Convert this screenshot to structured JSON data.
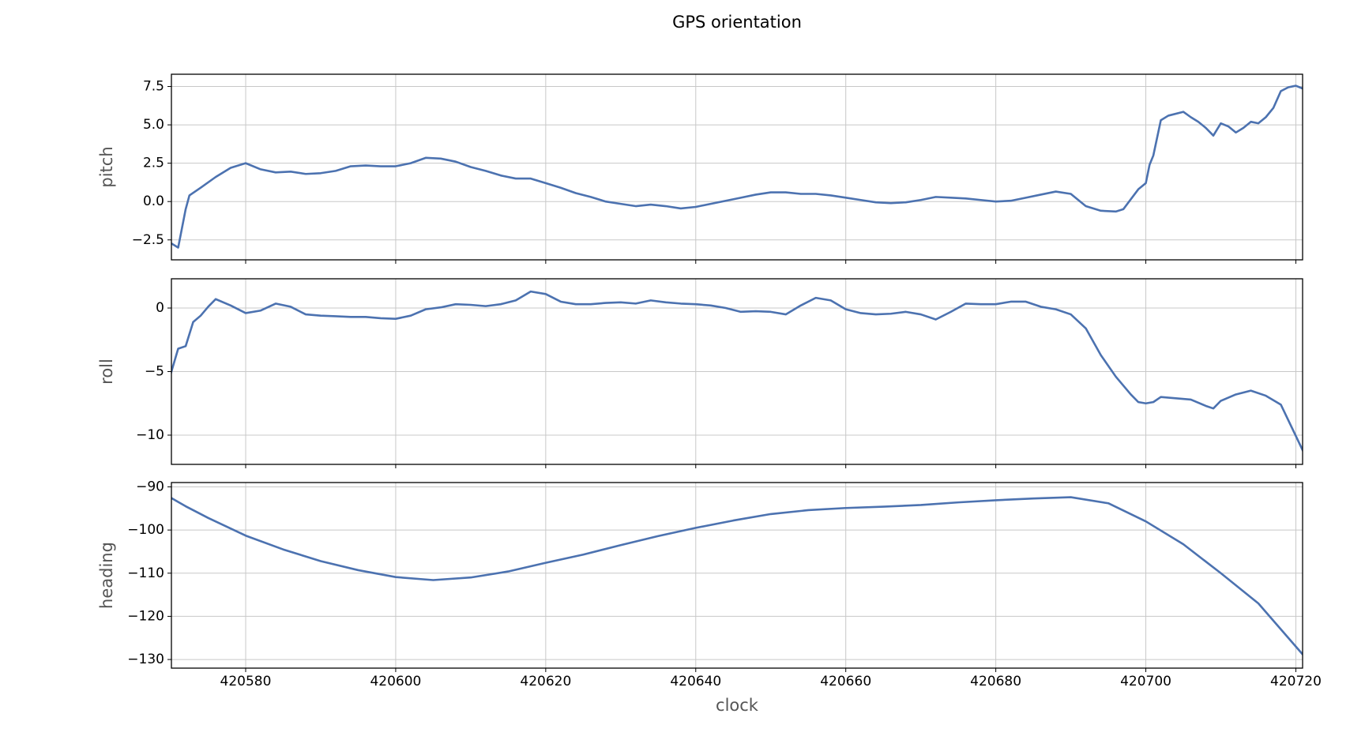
{
  "chart_data": [
    {
      "type": "line",
      "title": "GPS orientation",
      "ylabel": "pitch",
      "grid": true,
      "x": [
        420570,
        420571,
        420572,
        420572.5,
        420574,
        420576,
        420578,
        420580,
        420582,
        420584,
        420586,
        420588,
        420590,
        420592,
        420594,
        420596,
        420598,
        420600,
        420602,
        420604,
        420606,
        420608,
        420610,
        420612,
        420614,
        420616,
        420618,
        420620,
        420622,
        420624,
        420626,
        420628,
        420630,
        420632,
        420634,
        420636,
        420638,
        420640,
        420642,
        420644,
        420646,
        420648,
        420650,
        420652,
        420654,
        420656,
        420658,
        420660,
        420662,
        420664,
        420666,
        420668,
        420670,
        420672,
        420674,
        420676,
        420678,
        420680,
        420682,
        420684,
        420686,
        420688,
        420690,
        420692,
        420694,
        420696,
        420697,
        420699,
        420700,
        420700.5,
        420701,
        420702,
        420703,
        420705,
        420706,
        420707,
        420708,
        420709,
        420710,
        420711,
        420712,
        420713,
        420714,
        420715,
        420716,
        420717,
        420718,
        420719,
        420720,
        420721
      ],
      "series": [
        {
          "color": "#4c72b0",
          "values": [
            -2.7,
            -3.0,
            -0.5,
            0.4,
            0.9,
            1.6,
            2.2,
            2.5,
            2.1,
            1.9,
            1.95,
            1.8,
            1.85,
            2.0,
            2.3,
            2.35,
            2.3,
            2.3,
            2.5,
            2.85,
            2.8,
            2.6,
            2.25,
            2.0,
            1.7,
            1.5,
            1.5,
            1.2,
            0.9,
            0.55,
            0.3,
            0.0,
            -0.15,
            -0.3,
            -0.2,
            -0.3,
            -0.45,
            -0.35,
            -0.15,
            0.05,
            0.25,
            0.45,
            0.6,
            0.6,
            0.5,
            0.5,
            0.4,
            0.25,
            0.1,
            -0.05,
            -0.1,
            -0.05,
            0.1,
            0.3,
            0.25,
            0.2,
            0.1,
            0.0,
            0.05,
            0.25,
            0.45,
            0.65,
            0.5,
            -0.3,
            -0.6,
            -0.65,
            -0.5,
            0.8,
            1.2,
            2.4,
            3.0,
            5.3,
            5.6,
            5.85,
            5.5,
            5.2,
            4.8,
            4.3,
            5.1,
            4.9,
            4.5,
            4.8,
            5.2,
            5.1,
            5.5,
            6.1,
            7.2,
            7.45,
            7.55,
            7.35
          ]
        }
      ],
      "xlim": [
        420570.1,
        420720.9
      ],
      "xticks": [
        420580,
        420600,
        420620,
        420640,
        420660,
        420680,
        420700,
        420720
      ],
      "ylim": [
        -3.8,
        8.3
      ],
      "yticks": [
        {
          "value": -2.5,
          "label": "−2.5"
        },
        {
          "value": 0,
          "label": "0.0"
        },
        2.5,
        {
          "value": 5,
          "label": "5.0"
        },
        7.5
      ]
    },
    {
      "type": "line",
      "ylabel": "roll",
      "grid": true,
      "x": [
        420570,
        420571,
        420572,
        420573,
        420574,
        420575,
        420576,
        420578,
        420580,
        420582,
        420584,
        420586,
        420588,
        420590,
        420592,
        420594,
        420596,
        420598,
        420600,
        420602,
        420604,
        420606,
        420608,
        420610,
        420612,
        420614,
        420616,
        420618,
        420620,
        420622,
        420624,
        420626,
        420628,
        420630,
        420632,
        420634,
        420636,
        420638,
        420640,
        420642,
        420644,
        420646,
        420648,
        420650,
        420652,
        420654,
        420656,
        420658,
        420660,
        420662,
        420664,
        420666,
        420668,
        420670,
        420672,
        420674,
        420676,
        420678,
        420680,
        420682,
        420684,
        420686,
        420688,
        420690,
        420692,
        420694,
        420696,
        420698,
        420699,
        420700,
        420701,
        420702,
        420704,
        420706,
        420708,
        420709,
        420710,
        420712,
        420714,
        420716,
        420718,
        420721
      ],
      "series": [
        {
          "color": "#4c72b0",
          "values": [
            -5.2,
            -3.2,
            -3.0,
            -1.1,
            -0.6,
            0.1,
            0.7,
            0.2,
            -0.4,
            -0.2,
            0.35,
            0.1,
            -0.5,
            -0.6,
            -0.65,
            -0.7,
            -0.7,
            -0.8,
            -0.85,
            -0.6,
            -0.1,
            0.05,
            0.3,
            0.25,
            0.15,
            0.3,
            0.6,
            1.3,
            1.1,
            0.5,
            0.3,
            0.3,
            0.4,
            0.45,
            0.35,
            0.6,
            0.45,
            0.35,
            0.3,
            0.2,
            0.0,
            -0.3,
            -0.25,
            -0.3,
            -0.5,
            0.2,
            0.8,
            0.6,
            -0.1,
            -0.4,
            -0.5,
            -0.45,
            -0.3,
            -0.5,
            -0.9,
            -0.3,
            0.35,
            0.3,
            0.3,
            0.5,
            0.5,
            0.1,
            -0.1,
            -0.5,
            -1.6,
            -3.7,
            -5.4,
            -6.8,
            -7.4,
            -7.5,
            -7.4,
            -7.0,
            -7.1,
            -7.2,
            -7.7,
            -7.9,
            -7.3,
            -6.8,
            -6.5,
            -6.9,
            -7.6,
            -11.3
          ]
        }
      ],
      "xlim": [
        420570.1,
        420720.9
      ],
      "xticks": [
        420580,
        420600,
        420620,
        420640,
        420660,
        420680,
        420700,
        420720
      ],
      "ylim": [
        -12.3,
        2.3
      ],
      "yticks": [
        {
          "value": -10,
          "label": "−10"
        },
        {
          "value": -5,
          "label": "−5"
        },
        0
      ]
    },
    {
      "type": "line",
      "ylabel": "heading",
      "xlabel": "clock",
      "grid": true,
      "x": [
        420570,
        420572,
        420575,
        420580,
        420585,
        420590,
        420595,
        420600,
        420605,
        420610,
        420615,
        420620,
        420625,
        420630,
        420635,
        420640,
        420645,
        420650,
        420655,
        420660,
        420665,
        420670,
        420675,
        420680,
        420685,
        420690,
        420695,
        420700,
        420705,
        420710,
        420715,
        420721
      ],
      "series": [
        {
          "color": "#4c72b0",
          "values": [
            -92.5,
            -94.5,
            -97.2,
            -101.3,
            -104.5,
            -107.2,
            -109.3,
            -110.9,
            -111.6,
            -111.0,
            -109.6,
            -107.6,
            -105.7,
            -103.5,
            -101.4,
            -99.5,
            -97.8,
            -96.3,
            -95.4,
            -94.9,
            -94.6,
            -94.2,
            -93.6,
            -93.1,
            -92.7,
            -92.4,
            -93.8,
            -98.0,
            -103.3,
            -110.0,
            -117.0,
            -129.0
          ]
        }
      ],
      "xlim": [
        420570.1,
        420720.9
      ],
      "xticks": [
        420580,
        420600,
        420620,
        420640,
        420660,
        420680,
        420700,
        420720
      ],
      "ylim": [
        -132,
        -89
      ],
      "yticks": [
        {
          "value": -130,
          "label": "−130"
        },
        {
          "value": -120,
          "label": "−120"
        },
        {
          "value": -110,
          "label": "−110"
        },
        {
          "value": -100,
          "label": "−100"
        },
        {
          "value": -90,
          "label": "−90"
        }
      ]
    }
  ]
}
